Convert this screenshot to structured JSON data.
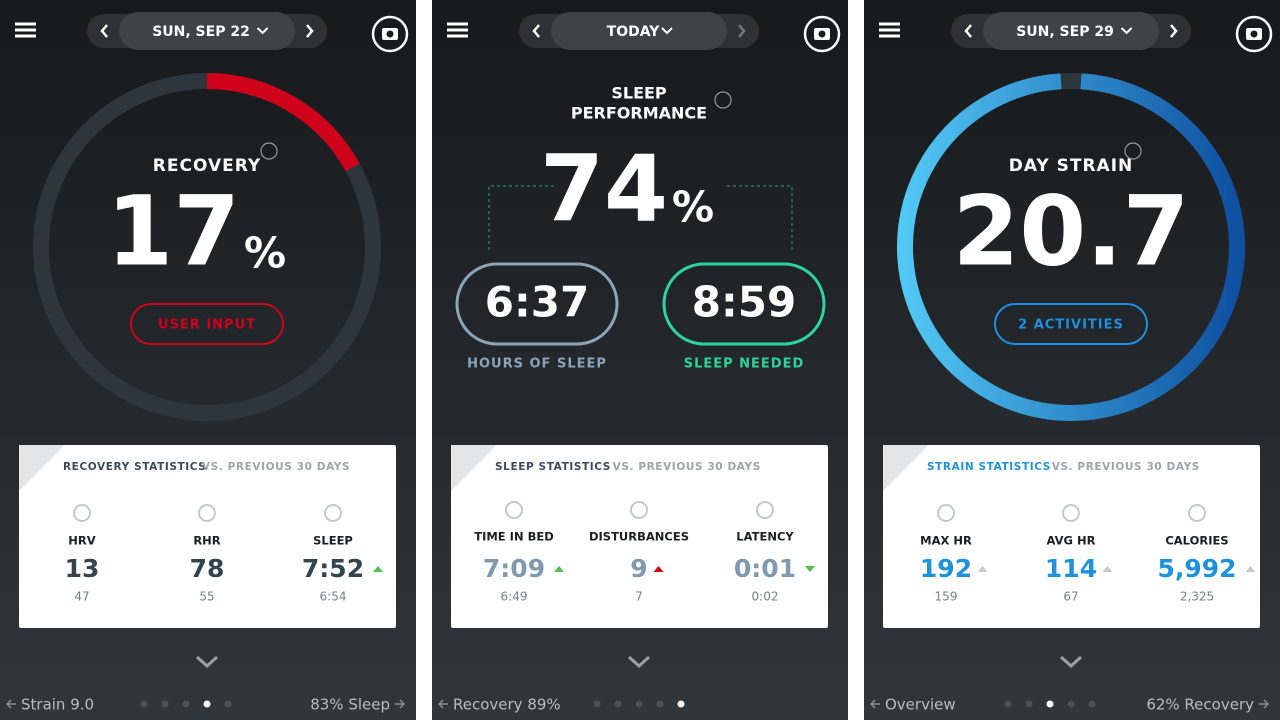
{
  "panels": [
    {
      "date": "SUN, SEP 22",
      "label": [
        "RECOVERY"
      ],
      "value": "17",
      "unit": "%",
      "button": "USER INPUT",
      "accent": "#d0021b",
      "stats_title": "RECOVERY STATISTICS",
      "stats_suffix": "VS. PREVIOUS 30 DAYS",
      "stats_color": "#33444f",
      "stats": [
        {
          "label": "HRV",
          "value": "13",
          "previous": "47"
        },
        {
          "label": "RHR",
          "value": "78",
          "previous": "55"
        },
        {
          "label": "SLEEP",
          "value": "7:52",
          "previous": "6:54",
          "trend": "up",
          "trend_color": "#4cc24c"
        }
      ],
      "footer_left": "Strain 9.0",
      "footer_right": "83% Sleep"
    },
    {
      "date": "TODAY",
      "label": [
        "SLEEP",
        "PERFORMANCE"
      ],
      "value": "74",
      "unit": "%",
      "pills": [
        {
          "value": "6:37",
          "label": "HOURS OF SLEEP",
          "color": "#8ba4b8"
        },
        {
          "value": "8:59",
          "label": "SLEEP NEEDED",
          "color": "#2ed39a"
        }
      ],
      "stats_title": "SLEEP STATISTICS",
      "stats_suffix": "VS. PREVIOUS 30 DAYS",
      "stats_color": "#7f9aae",
      "stats": [
        {
          "label": "TIME IN BED",
          "value": "7:09",
          "previous": "6:49",
          "trend": "up",
          "trend_color": "#4cc24c"
        },
        {
          "label": "DISTURBANCES",
          "value": "9",
          "previous": "7",
          "trend": "up",
          "trend_color": "#d0021b"
        },
        {
          "label": "LATENCY",
          "value": "0:01",
          "previous": "0:02",
          "trend": "down",
          "trend_color": "#4cc24c"
        }
      ],
      "footer_left": "Recovery 89%"
    },
    {
      "date": "SUN, SEP 29",
      "label": [
        "DAY STRAIN"
      ],
      "value": "20.7",
      "button": "2 ACTIVITIES",
      "accent": "#1d8fe0",
      "stats_title": "STRAIN STATISTICS",
      "stats_suffix": "VS. PREVIOUS 30 DAYS",
      "stats_color": "#1e93dc",
      "stats": [
        {
          "label": "MAX HR",
          "value": "192",
          "previous": "159",
          "trend": "up",
          "trend_color": "#c8c8c8"
        },
        {
          "label": "AVG HR",
          "value": "114",
          "previous": "67",
          "trend": "up",
          "trend_color": "#c8c8c8"
        },
        {
          "label": "CALORIES",
          "value": "5,992",
          "previous": "2,325",
          "trend": "up",
          "trend_color": "#c8c8c8"
        }
      ],
      "footer_left": "Overview",
      "footer_right": "62% Recovery"
    }
  ]
}
